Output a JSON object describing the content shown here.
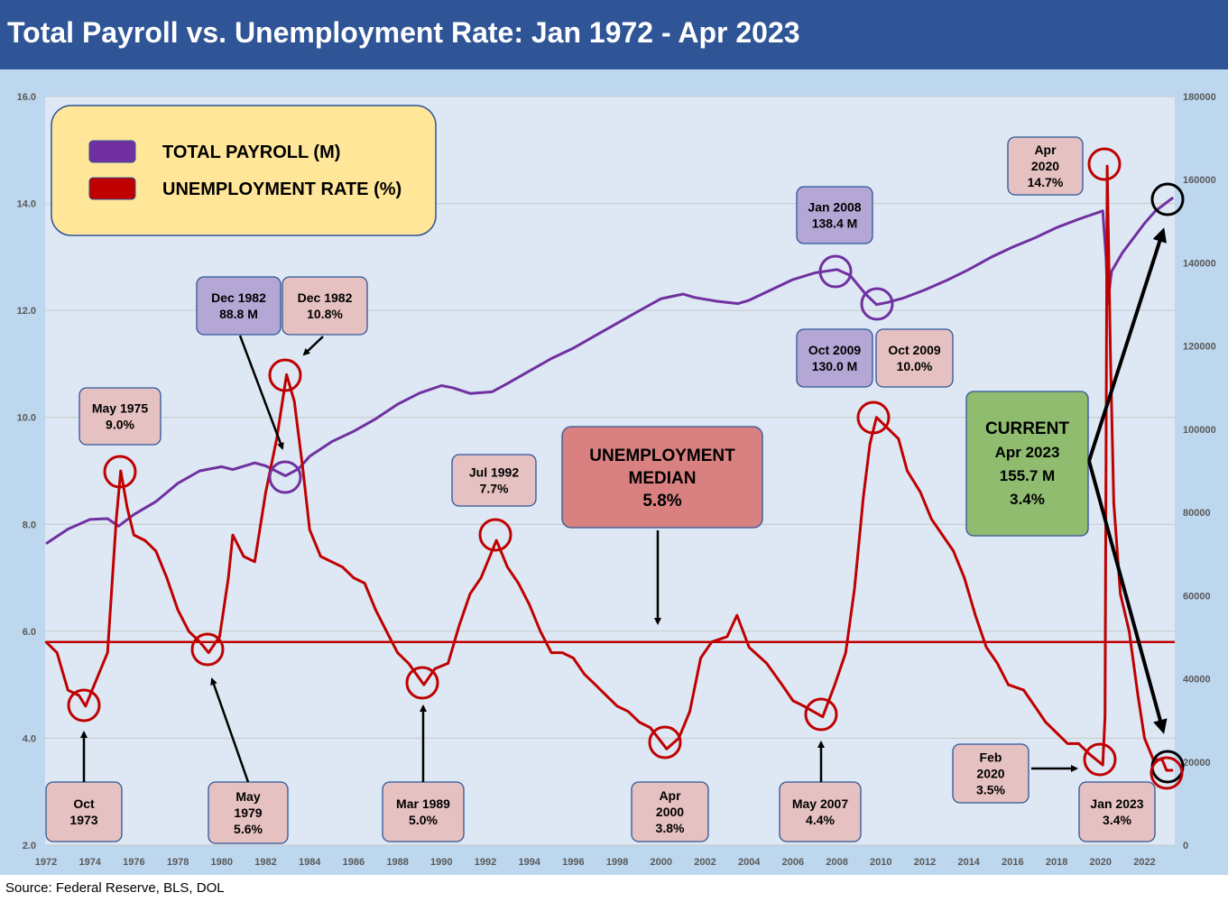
{
  "title": "Total Payroll vs. Unemployment Rate: Jan 1972 - Apr 2023",
  "source": "Source: Federal Reserve, BLS, DOL",
  "colors": {
    "header": "#2f5597",
    "plot_bg": "#dde8f4",
    "outer_bg": "#bdd7ee",
    "payroll": "#7030a0",
    "unemployment": "#c00000",
    "legend_bg": "#ffe699",
    "purple_label": "#b4a7d6",
    "pink_label": "#e6c1c1",
    "median_box": "#d98080",
    "current_box": "#8fbc6f"
  },
  "legend": [
    {
      "label": "TOTAL PAYROLL (M)",
      "color": "#7030a0"
    },
    {
      "label": "UNEMPLOYMENT RATE (%)",
      "color": "#c00000"
    }
  ],
  "chart_data": {
    "type": "line",
    "title": "Total Payroll vs. Unemployment Rate: Jan 1972 - Apr 2023",
    "x_range": [
      1972,
      2023.4
    ],
    "x_ticks": [
      "1972",
      "1974",
      "1976",
      "1978",
      "1980",
      "1982",
      "1984",
      "1986",
      "1988",
      "1990",
      "1992",
      "1994",
      "1996",
      "1998",
      "2000",
      "2002",
      "2004",
      "2006",
      "2008",
      "2010",
      "2012",
      "2014",
      "2016",
      "2018",
      "2020",
      "2022"
    ],
    "y_left": {
      "range": [
        2,
        16
      ],
      "ticks": [
        "2.0",
        "4.0",
        "6.0",
        "8.0",
        "10.0",
        "12.0",
        "14.0",
        "16.0"
      ]
    },
    "y_right": {
      "range": [
        0,
        180000
      ],
      "ticks": [
        "0",
        "20000",
        "40000",
        "60000",
        "80000",
        "100000",
        "120000",
        "140000",
        "160000",
        "180000"
      ]
    },
    "grid": true,
    "legend_position": "top-left",
    "median": {
      "value": 5.8,
      "label_lines": [
        "UNEMPLOYMENT",
        "MEDIAN",
        "5.8%"
      ]
    },
    "series": [
      {
        "name": "TOTAL PAYROLL (M)",
        "axis": "right",
        "points": [
          [
            1972.0,
            72500
          ],
          [
            1973.0,
            76000
          ],
          [
            1974.0,
            78300
          ],
          [
            1974.8,
            78500
          ],
          [
            1975.3,
            76700
          ],
          [
            1976.0,
            79500
          ],
          [
            1977.0,
            82600
          ],
          [
            1978.0,
            87000
          ],
          [
            1979.0,
            90000
          ],
          [
            1980.0,
            91000
          ],
          [
            1980.5,
            90300
          ],
          [
            1981.5,
            91900
          ],
          [
            1982.0,
            91200
          ],
          [
            1982.9,
            88800
          ],
          [
            1983.5,
            90500
          ],
          [
            1984.0,
            93500
          ],
          [
            1985.0,
            97000
          ],
          [
            1986.0,
            99500
          ],
          [
            1987.0,
            102500
          ],
          [
            1988.0,
            106000
          ],
          [
            1989.0,
            108700
          ],
          [
            1990.0,
            110500
          ],
          [
            1990.5,
            110000
          ],
          [
            1991.3,
            108600
          ],
          [
            1992.3,
            109000
          ],
          [
            1993.0,
            111000
          ],
          [
            1994.0,
            114000
          ],
          [
            1995.0,
            117000
          ],
          [
            1996.0,
            119500
          ],
          [
            1997.0,
            122500
          ],
          [
            1998.0,
            125500
          ],
          [
            1999.0,
            128500
          ],
          [
            2000.0,
            131400
          ],
          [
            2001.0,
            132500
          ],
          [
            2001.5,
            131700
          ],
          [
            2002.5,
            130800
          ],
          [
            2003.5,
            130200
          ],
          [
            2004.0,
            131000
          ],
          [
            2005.0,
            133500
          ],
          [
            2006.0,
            136000
          ],
          [
            2007.0,
            137600
          ],
          [
            2008.0,
            138400
          ],
          [
            2008.6,
            137000
          ],
          [
            2009.3,
            132500
          ],
          [
            2009.8,
            130000
          ],
          [
            2010.3,
            130500
          ],
          [
            2011.0,
            131500
          ],
          [
            2012.0,
            133500
          ],
          [
            2013.0,
            135800
          ],
          [
            2014.0,
            138400
          ],
          [
            2015.0,
            141300
          ],
          [
            2016.0,
            143800
          ],
          [
            2017.0,
            146000
          ],
          [
            2018.0,
            148500
          ],
          [
            2019.0,
            150500
          ],
          [
            2020.1,
            152500
          ],
          [
            2020.25,
            141000
          ],
          [
            2020.32,
            130200
          ],
          [
            2020.5,
            138000
          ],
          [
            2021.0,
            142500
          ],
          [
            2021.5,
            146000
          ],
          [
            2022.0,
            149500
          ],
          [
            2022.5,
            152500
          ],
          [
            2023.3,
            155700
          ]
        ]
      },
      {
        "name": "UNEMPLOYMENT RATE (%)",
        "axis": "left",
        "points": [
          [
            1972.0,
            5.8
          ],
          [
            1972.5,
            5.6
          ],
          [
            1973.0,
            4.9
          ],
          [
            1973.5,
            4.8
          ],
          [
            1973.8,
            4.6
          ],
          [
            1974.3,
            5.1
          ],
          [
            1974.8,
            5.6
          ],
          [
            1975.2,
            8.1
          ],
          [
            1975.4,
            9.0
          ],
          [
            1975.7,
            8.3
          ],
          [
            1976.0,
            7.8
          ],
          [
            1976.5,
            7.7
          ],
          [
            1977.0,
            7.5
          ],
          [
            1977.5,
            7.0
          ],
          [
            1978.0,
            6.4
          ],
          [
            1978.5,
            6.0
          ],
          [
            1979.0,
            5.8
          ],
          [
            1979.4,
            5.6
          ],
          [
            1979.9,
            5.9
          ],
          [
            1980.3,
            7.0
          ],
          [
            1980.5,
            7.8
          ],
          [
            1981.0,
            7.4
          ],
          [
            1981.5,
            7.3
          ],
          [
            1982.0,
            8.6
          ],
          [
            1982.5,
            9.6
          ],
          [
            1982.95,
            10.8
          ],
          [
            1983.3,
            10.3
          ],
          [
            1983.7,
            9.0
          ],
          [
            1984.0,
            7.9
          ],
          [
            1984.5,
            7.4
          ],
          [
            1985.0,
            7.3
          ],
          [
            1985.5,
            7.2
          ],
          [
            1986.0,
            7.0
          ],
          [
            1986.5,
            6.9
          ],
          [
            1987.0,
            6.4
          ],
          [
            1987.5,
            6.0
          ],
          [
            1988.0,
            5.6
          ],
          [
            1988.5,
            5.4
          ],
          [
            1989.2,
            5.0
          ],
          [
            1989.7,
            5.3
          ],
          [
            1990.3,
            5.4
          ],
          [
            1990.8,
            6.1
          ],
          [
            1991.3,
            6.7
          ],
          [
            1991.8,
            7.0
          ],
          [
            1992.5,
            7.7
          ],
          [
            1993.0,
            7.2
          ],
          [
            1993.5,
            6.9
          ],
          [
            1994.0,
            6.5
          ],
          [
            1994.5,
            6.0
          ],
          [
            1995.0,
            5.6
          ],
          [
            1995.5,
            5.6
          ],
          [
            1996.0,
            5.5
          ],
          [
            1996.5,
            5.2
          ],
          [
            1997.0,
            5.0
          ],
          [
            1997.5,
            4.8
          ],
          [
            1998.0,
            4.6
          ],
          [
            1998.5,
            4.5
          ],
          [
            1999.0,
            4.3
          ],
          [
            1999.5,
            4.2
          ],
          [
            2000.25,
            3.8
          ],
          [
            2000.8,
            4.0
          ],
          [
            2001.3,
            4.5
          ],
          [
            2001.8,
            5.5
          ],
          [
            2002.3,
            5.8
          ],
          [
            2003.0,
            5.9
          ],
          [
            2003.45,
            6.3
          ],
          [
            2004.0,
            5.7
          ],
          [
            2004.8,
            5.4
          ],
          [
            2005.5,
            5.0
          ],
          [
            2006.0,
            4.7
          ],
          [
            2006.5,
            4.6
          ],
          [
            2007.35,
            4.4
          ],
          [
            2007.9,
            5.0
          ],
          [
            2008.4,
            5.6
          ],
          [
            2008.8,
            6.8
          ],
          [
            2009.2,
            8.5
          ],
          [
            2009.5,
            9.5
          ],
          [
            2009.8,
            10.0
          ],
          [
            2010.3,
            9.8
          ],
          [
            2010.8,
            9.6
          ],
          [
            2011.2,
            9.0
          ],
          [
            2011.8,
            8.6
          ],
          [
            2012.3,
            8.1
          ],
          [
            2012.8,
            7.8
          ],
          [
            2013.3,
            7.5
          ],
          [
            2013.8,
            7.0
          ],
          [
            2014.3,
            6.3
          ],
          [
            2014.8,
            5.7
          ],
          [
            2015.3,
            5.4
          ],
          [
            2015.8,
            5.0
          ],
          [
            2016.5,
            4.9
          ],
          [
            2017.0,
            4.6
          ],
          [
            2017.5,
            4.3
          ],
          [
            2018.0,
            4.1
          ],
          [
            2018.5,
            3.9
          ],
          [
            2019.0,
            3.9
          ],
          [
            2019.5,
            3.7
          ],
          [
            2020.1,
            3.5
          ],
          [
            2020.2,
            4.4
          ],
          [
            2020.3,
            14.7
          ],
          [
            2020.45,
            11.1
          ],
          [
            2020.6,
            8.4
          ],
          [
            2020.9,
            6.7
          ],
          [
            2021.3,
            6.0
          ],
          [
            2021.7,
            4.8
          ],
          [
            2022.0,
            4.0
          ],
          [
            2022.4,
            3.6
          ],
          [
            2022.8,
            3.6
          ],
          [
            2023.0,
            3.4
          ],
          [
            2023.3,
            3.4
          ]
        ]
      }
    ],
    "annotations": [
      {
        "text": [
          "Oct",
          "1973"
        ],
        "style": "pink"
      },
      {
        "text": [
          "May 1975",
          "9.0%"
        ],
        "style": "pink"
      },
      {
        "text": [
          "May",
          "1979",
          "5.6%"
        ],
        "style": "pink"
      },
      {
        "text": [
          "Dec 1982",
          "88.8 M"
        ],
        "style": "purple"
      },
      {
        "text": [
          "Dec 1982",
          "10.8%"
        ],
        "style": "pink"
      },
      {
        "text": [
          "Mar 1989",
          "5.0%"
        ],
        "style": "pink"
      },
      {
        "text": [
          "Jul 1992",
          "7.7%"
        ],
        "style": "pink"
      },
      {
        "text": [
          "Apr",
          "2000",
          "3.8%"
        ],
        "style": "pink"
      },
      {
        "text": [
          "May 2007",
          "4.4%"
        ],
        "style": "pink"
      },
      {
        "text": [
          "Jan 2008",
          "138.4 M"
        ],
        "style": "purple"
      },
      {
        "text": [
          "Oct 2009",
          "130.0 M"
        ],
        "style": "purple"
      },
      {
        "text": [
          "Oct 2009",
          "10.0%"
        ],
        "style": "pink"
      },
      {
        "text": [
          "Apr",
          "2020",
          "14.7%"
        ],
        "style": "pink"
      },
      {
        "text": [
          "Feb",
          "2020",
          "3.5%"
        ],
        "style": "pink"
      },
      {
        "text": [
          "Jan 2023",
          "3.4%"
        ],
        "style": "pink"
      },
      {
        "text": [
          "CURRENT",
          "Apr 2023",
          "155.7 M",
          "3.4%"
        ],
        "style": "green"
      }
    ]
  }
}
